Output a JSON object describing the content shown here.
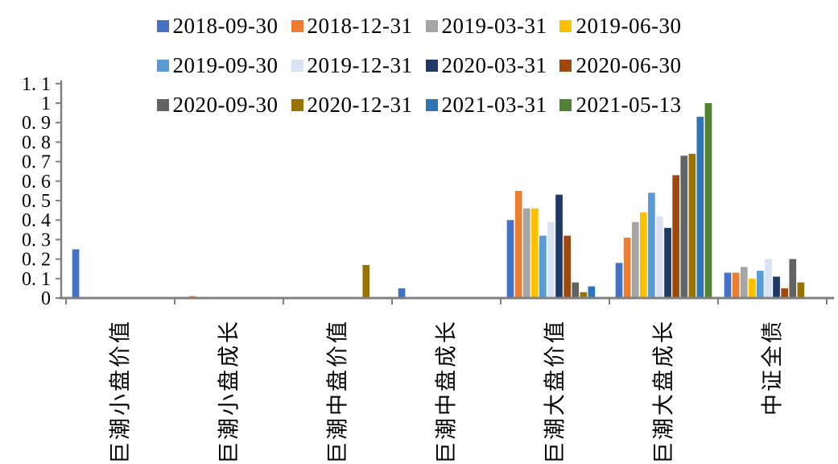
{
  "chart_data": {
    "type": "bar",
    "title": "",
    "xlabel": "",
    "ylabel": "",
    "ylim": [
      0,
      1.1
    ],
    "ytick_step": 0.1,
    "ytick_labels": [
      "0",
      "0. 1",
      "0. 2",
      "0. 3",
      "0. 4",
      "0. 5",
      "0. 6",
      "0. 7",
      "0. 8",
      "0. 9",
      "1",
      "1. 1"
    ],
    "grid": false,
    "legend_position": "top",
    "legend_rows": 3,
    "axis_color": "#808080",
    "text_color": "#000000",
    "categories": [
      "巨潮小盘价值",
      "巨潮小盘成长",
      "巨潮中盘价值",
      "巨潮中盘成长",
      "巨潮大盘价值",
      "巨潮大盘成长",
      "中证全债"
    ],
    "series": [
      {
        "name": "2018-09-30",
        "color": "#4472C4",
        "values": [
          0.25,
          0,
          0,
          0.05,
          0.4,
          0.18,
          0.13
        ]
      },
      {
        "name": "2018-12-31",
        "color": "#ED7D31",
        "values": [
          0,
          0.01,
          0,
          0,
          0.55,
          0.31,
          0.13
        ]
      },
      {
        "name": "2019-03-31",
        "color": "#A5A5A5",
        "values": [
          0,
          0,
          0,
          0,
          0.46,
          0.39,
          0.16
        ]
      },
      {
        "name": "2019-06-30",
        "color": "#FFC000",
        "values": [
          0,
          0,
          0,
          0,
          0.46,
          0.44,
          0.1
        ]
      },
      {
        "name": "2019-09-30",
        "color": "#5B9BD5",
        "values": [
          0,
          0,
          0,
          0,
          0.32,
          0.54,
          0.14
        ]
      },
      {
        "name": "2019-12-31",
        "color": "#DAE3F3",
        "values": [
          0,
          0,
          0,
          0,
          0.39,
          0.42,
          0.2
        ]
      },
      {
        "name": "2020-03-31",
        "color": "#203864",
        "values": [
          0,
          0,
          0,
          0,
          0.53,
          0.36,
          0.11
        ]
      },
      {
        "name": "2020-06-30",
        "color": "#9E480E",
        "values": [
          0,
          0,
          0,
          0,
          0.32,
          0.63,
          0.05
        ]
      },
      {
        "name": "2020-09-30",
        "color": "#636363",
        "values": [
          0,
          0,
          0,
          0,
          0.08,
          0.73,
          0.2
        ]
      },
      {
        "name": "2020-12-31",
        "color": "#997300",
        "values": [
          0,
          0,
          0.17,
          0,
          0.03,
          0.74,
          0.08
        ]
      },
      {
        "name": "2021-03-31",
        "color": "#2E75B6",
        "values": [
          0,
          0,
          0,
          0,
          0.06,
          0.93,
          0
        ]
      },
      {
        "name": "2021-05-13",
        "color": "#548235",
        "values": [
          0,
          0,
          0,
          0,
          0,
          1.0,
          0
        ]
      }
    ]
  }
}
